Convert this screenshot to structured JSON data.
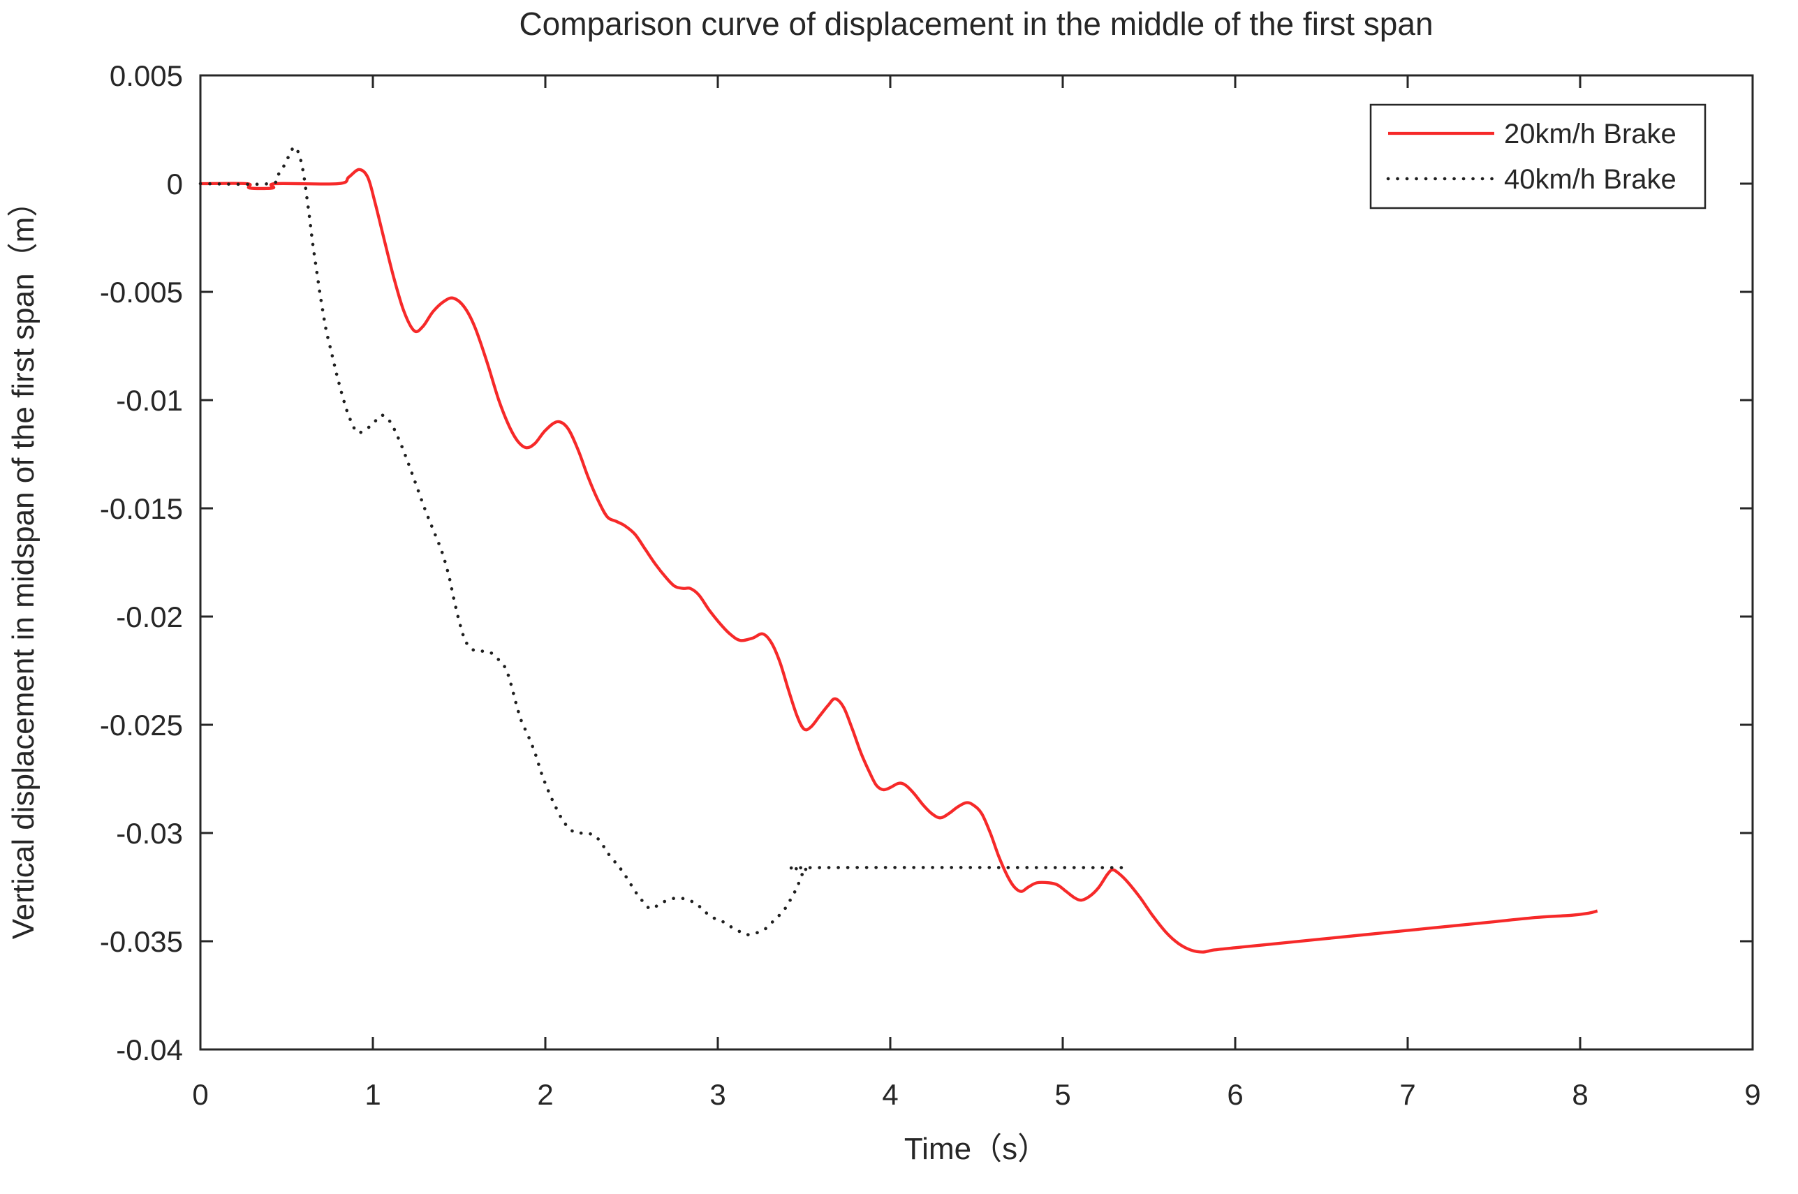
{
  "title": "Comparison curve of displacement in the middle of the first span",
  "xlabel": "Time（s）",
  "ylabel": "Vertical displacement in midspan of the first span（m）",
  "colors": {
    "series_20kmh": "#f62929",
    "series_40kmh": "#1f1f1f",
    "axis": "#262626",
    "background": "#ffffff"
  },
  "legend": {
    "entries": [
      {
        "label": "20km/h Brake",
        "style": "solid",
        "color": "#f62929"
      },
      {
        "label": "40km/h Brake",
        "style": "dotted",
        "color": "#1f1f1f"
      }
    ]
  },
  "chart_data": {
    "type": "line",
    "title": "Comparison curve of displacement in the middle of the first span",
    "xlabel": "Time（s）",
    "ylabel": "Vertical displacement in midspan of the first span（m）",
    "xlim": [
      0,
      9
    ],
    "ylim": [
      -0.04,
      0.005
    ],
    "grid": false,
    "legend_position": "top-right",
    "xticks": {
      "values": [
        0,
        1,
        2,
        3,
        4,
        5,
        6,
        7,
        8,
        9
      ],
      "labels": [
        "0",
        "1",
        "2",
        "3",
        "4",
        "5",
        "6",
        "7",
        "8",
        "9"
      ]
    },
    "yticks": {
      "values": [
        0.005,
        0,
        -0.005,
        -0.01,
        -0.015,
        -0.02,
        -0.025,
        -0.03,
        -0.035,
        -0.04
      ],
      "labels": [
        "0.005",
        "0",
        "-0.005",
        "-0.01",
        "-0.015",
        "-0.02",
        "-0.025",
        "-0.03",
        "-0.035",
        "-0.04"
      ]
    },
    "series": [
      {
        "name": "20km/h Brake",
        "style": "solid",
        "color": "#f62929",
        "width": 4.3,
        "points": [
          [
            0,
            0
          ],
          [
            0.27,
            0
          ],
          [
            0.285,
            -0.0002
          ],
          [
            0.42,
            -0.0002
          ],
          [
            0.435,
            0
          ],
          [
            0.8,
            0
          ],
          [
            0.86,
            0.0003
          ],
          [
            0.92,
            0.00065
          ],
          [
            0.97,
            0.0003
          ],
          [
            1.01,
            -0.0008
          ],
          [
            1.06,
            -0.0024
          ],
          [
            1.12,
            -0.0043
          ],
          [
            1.18,
            -0.0059
          ],
          [
            1.24,
            -0.0068
          ],
          [
            1.29,
            -0.0066
          ],
          [
            1.35,
            -0.0059
          ],
          [
            1.42,
            -0.0054
          ],
          [
            1.47,
            -0.0053
          ],
          [
            1.53,
            -0.0057
          ],
          [
            1.59,
            -0.0066
          ],
          [
            1.66,
            -0.0082
          ],
          [
            1.73,
            -0.01
          ],
          [
            1.79,
            -0.0112
          ],
          [
            1.84,
            -0.0119
          ],
          [
            1.89,
            -0.0122
          ],
          [
            1.94,
            -0.012
          ],
          [
            2.0,
            -0.0114
          ],
          [
            2.07,
            -0.011
          ],
          [
            2.13,
            -0.0113
          ],
          [
            2.19,
            -0.0123
          ],
          [
            2.25,
            -0.0136
          ],
          [
            2.31,
            -0.0147
          ],
          [
            2.36,
            -0.0154
          ],
          [
            2.41,
            -0.0156
          ],
          [
            2.46,
            -0.0158
          ],
          [
            2.52,
            -0.0162
          ],
          [
            2.58,
            -0.0169
          ],
          [
            2.64,
            -0.0176
          ],
          [
            2.7,
            -0.0182
          ],
          [
            2.75,
            -0.0186
          ],
          [
            2.8,
            -0.0187
          ],
          [
            2.84,
            -0.0187
          ],
          [
            2.89,
            -0.019
          ],
          [
            2.95,
            -0.0197
          ],
          [
            3.01,
            -0.0203
          ],
          [
            3.07,
            -0.0208
          ],
          [
            3.13,
            -0.0211
          ],
          [
            3.2,
            -0.021
          ],
          [
            3.26,
            -0.0208
          ],
          [
            3.31,
            -0.0212
          ],
          [
            3.36,
            -0.0221
          ],
          [
            3.41,
            -0.0234
          ],
          [
            3.46,
            -0.0246
          ],
          [
            3.5,
            -0.0252
          ],
          [
            3.54,
            -0.0251
          ],
          [
            3.59,
            -0.0246
          ],
          [
            3.64,
            -0.0241
          ],
          [
            3.68,
            -0.0238
          ],
          [
            3.73,
            -0.0242
          ],
          [
            3.78,
            -0.0252
          ],
          [
            3.83,
            -0.0263
          ],
          [
            3.88,
            -0.0272
          ],
          [
            3.92,
            -0.0278
          ],
          [
            3.96,
            -0.028
          ],
          [
            4.0,
            -0.0279
          ],
          [
            4.05,
            -0.0277
          ],
          [
            4.09,
            -0.0278
          ],
          [
            4.14,
            -0.0282
          ],
          [
            4.19,
            -0.0287
          ],
          [
            4.24,
            -0.0291
          ],
          [
            4.29,
            -0.0293
          ],
          [
            4.34,
            -0.0291
          ],
          [
            4.39,
            -0.0288
          ],
          [
            4.44,
            -0.0286
          ],
          [
            4.48,
            -0.0287
          ],
          [
            4.53,
            -0.0291
          ],
          [
            4.58,
            -0.03
          ],
          [
            4.63,
            -0.0311
          ],
          [
            4.68,
            -0.032
          ],
          [
            4.72,
            -0.0325
          ],
          [
            4.76,
            -0.0327
          ],
          [
            4.8,
            -0.0325
          ],
          [
            4.85,
            -0.0323
          ],
          [
            4.92,
            -0.0323
          ],
          [
            4.97,
            -0.0324
          ],
          [
            5.02,
            -0.0327
          ],
          [
            5.07,
            -0.033
          ],
          [
            5.11,
            -0.0331
          ],
          [
            5.16,
            -0.0329
          ],
          [
            5.21,
            -0.0325
          ],
          [
            5.26,
            -0.0319
          ],
          [
            5.29,
            -0.0317
          ],
          [
            5.33,
            -0.0319
          ],
          [
            5.38,
            -0.0323
          ],
          [
            5.45,
            -0.033
          ],
          [
            5.52,
            -0.0338
          ],
          [
            5.6,
            -0.0346
          ],
          [
            5.67,
            -0.0351
          ],
          [
            5.74,
            -0.0354
          ],
          [
            5.81,
            -0.0355
          ],
          [
            5.88,
            -0.0354
          ],
          [
            6.0,
            -0.0353
          ],
          [
            6.25,
            -0.0351
          ],
          [
            6.5,
            -0.0349
          ],
          [
            6.75,
            -0.0347
          ],
          [
            7.0,
            -0.0345
          ],
          [
            7.25,
            -0.0343
          ],
          [
            7.5,
            -0.0341
          ],
          [
            7.75,
            -0.0339
          ],
          [
            7.95,
            -0.0338
          ],
          [
            8.05,
            -0.0337
          ],
          [
            8.1,
            -0.0336
          ]
        ]
      },
      {
        "name": "40km/h Brake",
        "style": "dotted",
        "color": "#1f1f1f",
        "width": 4.6,
        "points": [
          [
            0,
            0
          ],
          [
            0.4,
            0
          ],
          [
            0.45,
            0.0004
          ],
          [
            0.49,
            0.0009
          ],
          [
            0.52,
            0.0014
          ],
          [
            0.545,
            0.0017
          ],
          [
            0.57,
            0.0014
          ],
          [
            0.59,
            0.0008
          ],
          [
            0.605,
            0.0001
          ],
          [
            0.62,
            -0.0008
          ],
          [
            0.635,
            -0.0017
          ],
          [
            0.65,
            -0.0027
          ],
          [
            0.67,
            -0.0038
          ],
          [
            0.69,
            -0.0049
          ],
          [
            0.71,
            -0.0059
          ],
          [
            0.73,
            -0.0068
          ],
          [
            0.76,
            -0.0078
          ],
          [
            0.79,
            -0.0088
          ],
          [
            0.82,
            -0.0097
          ],
          [
            0.85,
            -0.0105
          ],
          [
            0.88,
            -0.0111
          ],
          [
            0.91,
            -0.0115
          ],
          [
            0.95,
            -0.0114
          ],
          [
            1.0,
            -0.0111
          ],
          [
            1.05,
            -0.0107
          ],
          [
            1.1,
            -0.011
          ],
          [
            1.15,
            -0.0118
          ],
          [
            1.2,
            -0.0128
          ],
          [
            1.25,
            -0.0139
          ],
          [
            1.3,
            -0.015
          ],
          [
            1.35,
            -0.016
          ],
          [
            1.4,
            -0.017
          ],
          [
            1.44,
            -0.0181
          ],
          [
            1.47,
            -0.0192
          ],
          [
            1.5,
            -0.0202
          ],
          [
            1.53,
            -0.021
          ],
          [
            1.56,
            -0.0214
          ],
          [
            1.6,
            -0.0216
          ],
          [
            1.65,
            -0.0216
          ],
          [
            1.69,
            -0.0217
          ],
          [
            1.73,
            -0.022
          ],
          [
            1.77,
            -0.0224
          ],
          [
            1.8,
            -0.0231
          ],
          [
            1.83,
            -0.024
          ],
          [
            1.86,
            -0.0248
          ],
          [
            1.9,
            -0.0255
          ],
          [
            1.94,
            -0.0263
          ],
          [
            1.98,
            -0.0273
          ],
          [
            2.02,
            -0.0281
          ],
          [
            2.06,
            -0.0288
          ],
          [
            2.1,
            -0.0294
          ],
          [
            2.14,
            -0.0298
          ],
          [
            2.18,
            -0.03
          ],
          [
            2.23,
            -0.03
          ],
          [
            2.28,
            -0.0301
          ],
          [
            2.32,
            -0.0304
          ],
          [
            2.36,
            -0.0309
          ],
          [
            2.41,
            -0.0314
          ],
          [
            2.45,
            -0.0318
          ],
          [
            2.49,
            -0.0323
          ],
          [
            2.53,
            -0.0328
          ],
          [
            2.57,
            -0.0332
          ],
          [
            2.61,
            -0.0335
          ],
          [
            2.66,
            -0.0333
          ],
          [
            2.71,
            -0.0331
          ],
          [
            2.77,
            -0.033
          ],
          [
            2.83,
            -0.0331
          ],
          [
            2.88,
            -0.0333
          ],
          [
            2.92,
            -0.0336
          ],
          [
            2.97,
            -0.0339
          ],
          [
            3.03,
            -0.0341
          ],
          [
            3.09,
            -0.0344
          ],
          [
            3.14,
            -0.0346
          ],
          [
            3.18,
            -0.0347
          ],
          [
            3.23,
            -0.0346
          ],
          [
            3.28,
            -0.0344
          ],
          [
            3.33,
            -0.034
          ],
          [
            3.38,
            -0.0336
          ],
          [
            3.42,
            -0.0331
          ],
          [
            3.46,
            -0.0325
          ],
          [
            3.49,
            -0.0319
          ],
          [
            3.52,
            -0.0317
          ],
          [
            3.56,
            -0.0316
          ],
          [
            5.39,
            -0.0316
          ]
        ]
      }
    ]
  }
}
